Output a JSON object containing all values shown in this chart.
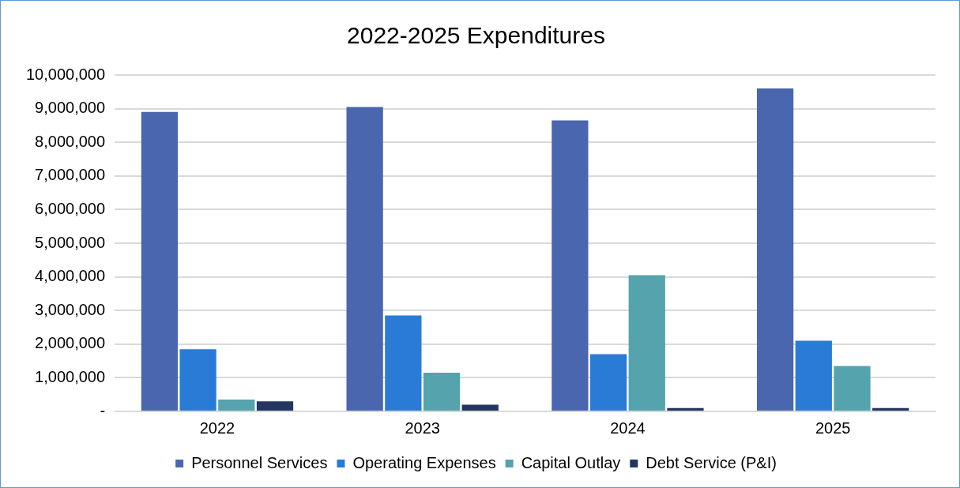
{
  "chart_data": {
    "type": "bar",
    "title": "2022-2025 Expenditures",
    "categories": [
      "2022",
      "2023",
      "2024",
      "2025"
    ],
    "series": [
      {
        "name": "Personnel Services",
        "color": "#4a66ae",
        "values": [
          8900000,
          9050000,
          8650000,
          9600000
        ]
      },
      {
        "name": "Operating Expenses",
        "color": "#2a7bd6",
        "values": [
          1850000,
          2850000,
          1700000,
          2100000
        ]
      },
      {
        "name": "Capital Outlay",
        "color": "#55a3ad",
        "values": [
          350000,
          1150000,
          4050000,
          1350000
        ]
      },
      {
        "name": "Debt Service (P&I)",
        "color": "#23365f",
        "values": [
          300000,
          200000,
          100000,
          100000
        ]
      }
    ],
    "ylim": [
      0,
      10000000
    ],
    "yticks": [
      {
        "value": 0,
        "label": "-"
      },
      {
        "value": 1000000,
        "label": "1,000,000"
      },
      {
        "value": 2000000,
        "label": "2,000,000"
      },
      {
        "value": 3000000,
        "label": "3,000,000"
      },
      {
        "value": 4000000,
        "label": "4,000,000"
      },
      {
        "value": 5000000,
        "label": "5,000,000"
      },
      {
        "value": 6000000,
        "label": "6,000,000"
      },
      {
        "value": 7000000,
        "label": "7,000,000"
      },
      {
        "value": 8000000,
        "label": "8,000,000"
      },
      {
        "value": 9000000,
        "label": "9,000,000"
      },
      {
        "value": 10000000,
        "label": "10,000,000"
      }
    ],
    "grid": "y",
    "legend": "bottom"
  }
}
